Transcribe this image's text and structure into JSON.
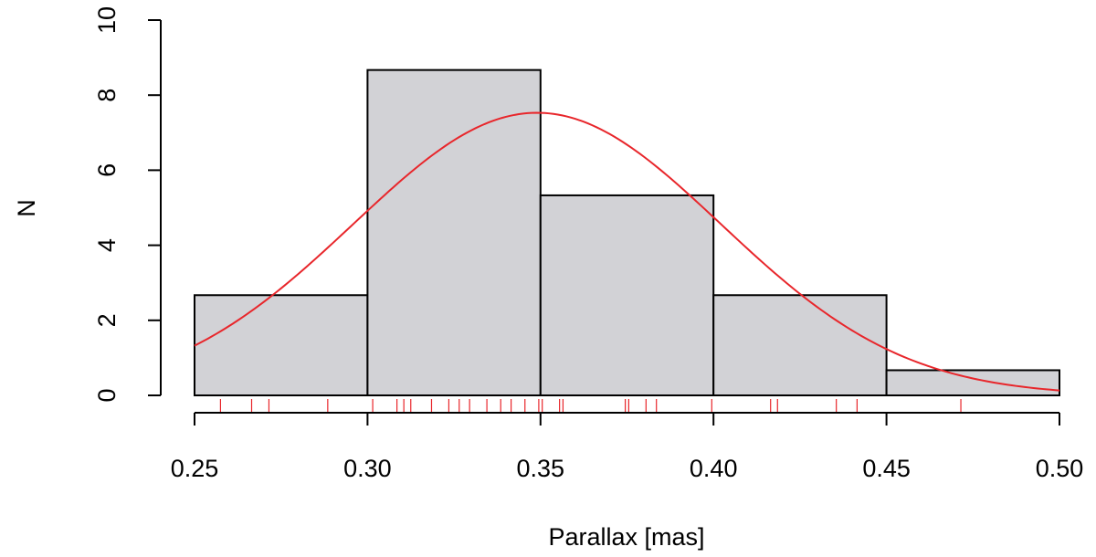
{
  "chart_data": {
    "type": "bar",
    "subtype": "histogram-with-density-curve-and-rug",
    "xlabel": "Parallax [mas]",
    "ylabel": "N",
    "xlim": [
      0.25,
      0.5
    ],
    "ylim": [
      0,
      10
    ],
    "x_ticks": [
      "0.25",
      "0.30",
      "0.35",
      "0.40",
      "0.45",
      "0.50"
    ],
    "y_ticks": [
      "0",
      "2",
      "4",
      "6",
      "8",
      "10"
    ],
    "grid": false,
    "legend": "none",
    "bins": [
      {
        "from": 0.25,
        "to": 0.3,
        "value": 2.67
      },
      {
        "from": 0.3,
        "to": 0.35,
        "value": 8.67
      },
      {
        "from": 0.35,
        "to": 0.4,
        "value": 5.33
      },
      {
        "from": 0.4,
        "to": 0.45,
        "value": 2.67
      },
      {
        "from": 0.45,
        "to": 0.5,
        "value": 0.67
      }
    ],
    "density_curve": {
      "type": "normal",
      "mean": 0.349,
      "sd": 0.0531,
      "peak": 7.53
    },
    "rug": [
      0.2575,
      0.2665,
      0.2715,
      0.2885,
      0.3015,
      0.3085,
      0.3105,
      0.3125,
      0.3185,
      0.3235,
      0.3265,
      0.3295,
      0.3345,
      0.3385,
      0.3415,
      0.3455,
      0.3495,
      0.3505,
      0.3555,
      0.3565,
      0.3745,
      0.3755,
      0.3805,
      0.3835,
      0.3995,
      0.4165,
      0.4185,
      0.4355,
      0.4415,
      0.4715
    ],
    "colors": {
      "bar_fill": "#d2d2d6",
      "bar_stroke": "#000000",
      "curve": "#e8262b",
      "rug": "#e8262b",
      "axis": "#000000"
    }
  }
}
